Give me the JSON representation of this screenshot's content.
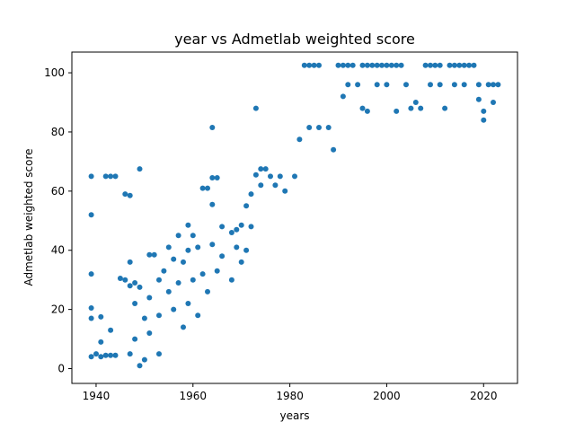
{
  "chart_data": {
    "type": "scatter",
    "title": "year vs Admetlab weighted score",
    "xlabel": "years",
    "ylabel": "Admetlab weighted score",
    "xlim": [
      1935,
      2027
    ],
    "ylim": [
      -5,
      107
    ],
    "xticks": [
      1940,
      1960,
      1980,
      2000,
      2020
    ],
    "yticks": [
      0,
      20,
      40,
      60,
      80,
      100
    ],
    "color": "#1f77b4",
    "grid": false,
    "series": [
      {
        "points": [
          [
            1939,
            65
          ],
          [
            1939,
            52
          ],
          [
            1939,
            32
          ],
          [
            1939,
            20.5
          ],
          [
            1939,
            17
          ],
          [
            1939,
            4
          ],
          [
            1940,
            5
          ],
          [
            1941,
            17.5
          ],
          [
            1941,
            9
          ],
          [
            1941,
            4
          ],
          [
            1942,
            65
          ],
          [
            1942,
            4.5
          ],
          [
            1943,
            65
          ],
          [
            1943,
            13
          ],
          [
            1943,
            4.5
          ],
          [
            1944,
            65
          ],
          [
            1944,
            4.5
          ],
          [
            1945,
            30.5
          ],
          [
            1946,
            59
          ],
          [
            1946,
            30
          ],
          [
            1947,
            58.5
          ],
          [
            1947,
            36
          ],
          [
            1947,
            28
          ],
          [
            1947,
            5
          ],
          [
            1948,
            29
          ],
          [
            1948,
            22
          ],
          [
            1948,
            10
          ],
          [
            1949,
            67.5
          ],
          [
            1949,
            27.5
          ],
          [
            1949,
            1
          ],
          [
            1950,
            17
          ],
          [
            1950,
            3
          ],
          [
            1951,
            38.5
          ],
          [
            1951,
            24
          ],
          [
            1951,
            12
          ],
          [
            1952,
            38.5
          ],
          [
            1953,
            30
          ],
          [
            1953,
            18
          ],
          [
            1953,
            5
          ],
          [
            1954,
            33
          ],
          [
            1955,
            41
          ],
          [
            1955,
            26
          ],
          [
            1956,
            37
          ],
          [
            1956,
            20
          ],
          [
            1957,
            45
          ],
          [
            1957,
            29
          ],
          [
            1958,
            36
          ],
          [
            1958,
            14
          ],
          [
            1959,
            48.5
          ],
          [
            1959,
            40
          ],
          [
            1959,
            22
          ],
          [
            1960,
            45
          ],
          [
            1960,
            30
          ],
          [
            1961,
            41
          ],
          [
            1961,
            18
          ],
          [
            1962,
            61
          ],
          [
            1962,
            32
          ],
          [
            1963,
            61
          ],
          [
            1963,
            26
          ],
          [
            1964,
            81.5
          ],
          [
            1964,
            64.5
          ],
          [
            1964,
            55.5
          ],
          [
            1964,
            42
          ],
          [
            1965,
            64.5
          ],
          [
            1965,
            33
          ],
          [
            1966,
            48
          ],
          [
            1966,
            38
          ],
          [
            1968,
            46
          ],
          [
            1968,
            30
          ],
          [
            1969,
            47
          ],
          [
            1969,
            41
          ],
          [
            1970,
            48.5
          ],
          [
            1970,
            36
          ],
          [
            1971,
            55
          ],
          [
            1971,
            40
          ],
          [
            1972,
            59
          ],
          [
            1972,
            48
          ],
          [
            1973,
            88
          ],
          [
            1973,
            65.5
          ],
          [
            1974,
            67.5
          ],
          [
            1974,
            62
          ],
          [
            1975,
            67.5
          ],
          [
            1976,
            65
          ],
          [
            1977,
            62
          ],
          [
            1978,
            65
          ],
          [
            1979,
            60
          ],
          [
            1981,
            65
          ],
          [
            1982,
            77.5
          ],
          [
            1983,
            102.5
          ],
          [
            1984,
            102.5
          ],
          [
            1985,
            102.5
          ],
          [
            1986,
            102.5
          ],
          [
            1984,
            81.5
          ],
          [
            1986,
            81.5
          ],
          [
            1988,
            81.5
          ],
          [
            1990,
            102.5
          ],
          [
            1991,
            102.5
          ],
          [
            1989,
            74
          ],
          [
            1991,
            92
          ],
          [
            1992,
            102.5
          ],
          [
            1992,
            96
          ],
          [
            1993,
            102.5
          ],
          [
            1994,
            96
          ],
          [
            1995,
            102.5
          ],
          [
            1996,
            102.5
          ],
          [
            1997,
            102.5
          ],
          [
            1998,
            102.5
          ],
          [
            1999,
            102.5
          ],
          [
            2000,
            102.5
          ],
          [
            2001,
            102.5
          ],
          [
            2002,
            102.5
          ],
          [
            2003,
            102.5
          ],
          [
            1995,
            88
          ],
          [
            1996,
            87
          ],
          [
            1998,
            96
          ],
          [
            2000,
            96
          ],
          [
            2002,
            87
          ],
          [
            2004,
            96
          ],
          [
            2005,
            88
          ],
          [
            2007,
            88
          ],
          [
            2008,
            102.5
          ],
          [
            2009,
            102.5
          ],
          [
            2010,
            102.5
          ],
          [
            2011,
            102.5
          ],
          [
            2013,
            102.5
          ],
          [
            2014,
            102.5
          ],
          [
            2015,
            102.5
          ],
          [
            2016,
            102.5
          ],
          [
            2017,
            102.5
          ],
          [
            2018,
            102.5
          ],
          [
            2009,
            96
          ],
          [
            2011,
            96
          ],
          [
            2014,
            96
          ],
          [
            2016,
            96
          ],
          [
            2019,
            96
          ],
          [
            2021,
            96
          ],
          [
            2022,
            96
          ],
          [
            2023,
            96
          ],
          [
            2019,
            91
          ],
          [
            2020,
            87
          ],
          [
            2022,
            90
          ],
          [
            2020,
            84
          ],
          [
            2006,
            90
          ],
          [
            2012,
            88
          ]
        ]
      }
    ]
  }
}
